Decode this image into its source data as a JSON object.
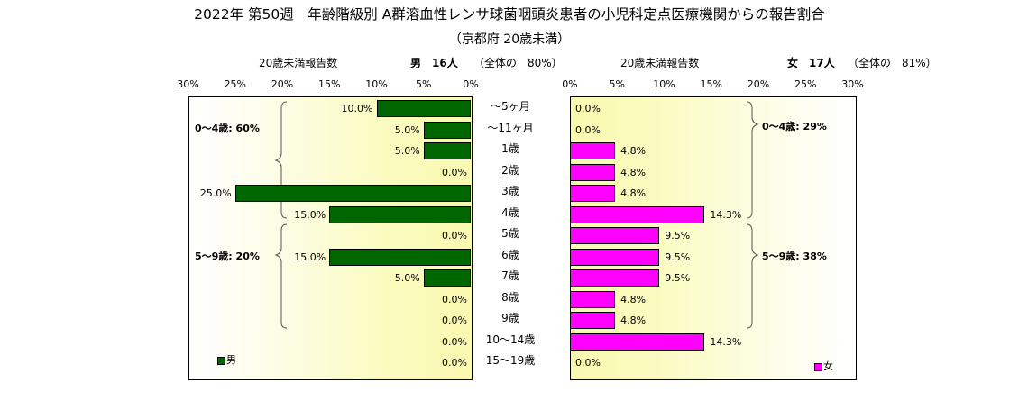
{
  "title": "2022年 第50週　年齢階級別 A群溶血性レンサ球菌咽頭炎患者の小児科定点医療機関からの報告割合",
  "subtitle": "（京都府 20歳未満）",
  "male_header": {
    "label": "20歳未満報告数",
    "count": "男　16人",
    "share": "（全体の　80%）"
  },
  "female_header": {
    "label": "20歳未満報告数",
    "count": "女　17人",
    "share": "（全体の　81%）"
  },
  "legend": {
    "male": "男",
    "female": "女"
  },
  "colors": {
    "male": "#006600",
    "female": "#ff00ff"
  },
  "chart_data": {
    "type": "bar",
    "orientation": "horizontal",
    "layout": "population-pyramid",
    "categories": [
      "～5ヶ月",
      "～11ヶ月",
      "1歳",
      "2歳",
      "3歳",
      "4歳",
      "5歳",
      "6歳",
      "7歳",
      "8歳",
      "9歳",
      "10～14歳",
      "15～19歳"
    ],
    "series": [
      {
        "name": "男",
        "values": [
          10.0,
          5.0,
          5.0,
          0.0,
          25.0,
          15.0,
          0.0,
          15.0,
          5.0,
          0.0,
          0.0,
          0.0,
          0.0
        ],
        "labels": [
          "10.0%",
          "5.0%",
          "5.0%",
          "0.0%",
          "25.0%",
          "15.0%",
          "0.0%",
          "15.0%",
          "5.0%",
          "0.0%",
          "0.0%",
          "0.0%",
          "0.0%"
        ]
      },
      {
        "name": "女",
        "values": [
          0.0,
          0.0,
          4.8,
          4.8,
          4.8,
          14.3,
          9.5,
          9.5,
          9.5,
          4.8,
          4.8,
          14.3,
          0.0
        ],
        "labels": [
          "0.0%",
          "0.0%",
          "4.8%",
          "4.8%",
          "4.8%",
          "14.3%",
          "9.5%",
          "9.5%",
          "9.5%",
          "4.8%",
          "4.8%",
          "14.3%",
          "0.0%"
        ]
      }
    ],
    "xlim": [
      0,
      30
    ],
    "ticks": [
      "0%",
      "5%",
      "10%",
      "15%",
      "20%",
      "25%",
      "30%"
    ],
    "group_labels": {
      "male": {
        "age_0_4": "0～4歳: 60%",
        "age_5_9": "5～9歳: 20%"
      },
      "female": {
        "age_0_4": "0～4歳: 29%",
        "age_5_9": "5～9歳: 38%"
      }
    },
    "legend_position": "bottom"
  }
}
